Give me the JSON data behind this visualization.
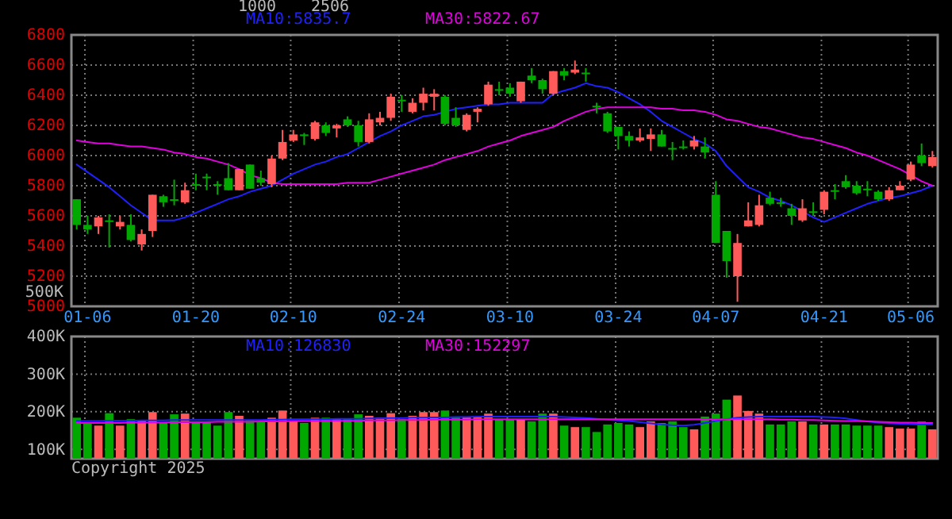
{
  "chart_data": [
    {
      "type": "candlestick",
      "categories": [
        null,
        "01-06",
        null,
        null,
        null,
        null,
        null,
        null,
        null,
        null,
        null,
        "01-20",
        null,
        null,
        null,
        null,
        null,
        null,
        null,
        null,
        "02-10",
        null,
        null,
        null,
        null,
        null,
        null,
        null,
        null,
        null,
        "02-24",
        null,
        null,
        null,
        null,
        null,
        null,
        null,
        null,
        null,
        "03-10",
        null,
        null,
        null,
        null,
        null,
        null,
        null,
        null,
        null,
        "03-24",
        null,
        null,
        null,
        null,
        null,
        null,
        null,
        null,
        "04-07",
        null,
        null,
        null,
        null,
        null,
        null,
        null,
        null,
        null,
        "04-21",
        null,
        null,
        null,
        null,
        null,
        null,
        null,
        "05-06",
        null,
        null
      ],
      "ohlc": [
        [
          5710,
          5710,
          5510,
          5540
        ],
        [
          5540,
          5600,
          5480,
          5510
        ],
        [
          5530,
          5600,
          5480,
          5590
        ],
        [
          5570,
          5610,
          5390,
          5560
        ],
        [
          5530,
          5600,
          5510,
          5560
        ],
        [
          5540,
          5610,
          5430,
          5440
        ],
        [
          5410,
          5510,
          5370,
          5480
        ],
        [
          5500,
          5740,
          5460,
          5740
        ],
        [
          5730,
          5740,
          5660,
          5690
        ],
        [
          5710,
          5840,
          5670,
          5700
        ],
        [
          5690,
          5820,
          5680,
          5770
        ],
        [
          5810,
          5880,
          5770,
          5800
        ],
        [
          5860,
          5880,
          5770,
          5850
        ],
        [
          5810,
          5830,
          5740,
          5800
        ],
        [
          5850,
          5950,
          5770,
          5770
        ],
        [
          5770,
          5910,
          5770,
          5910
        ],
        [
          5940,
          5940,
          5780,
          5780
        ],
        [
          5850,
          5900,
          5800,
          5820
        ],
        [
          5810,
          6000,
          5790,
          5980
        ],
        [
          5980,
          6170,
          5970,
          6090
        ],
        [
          6100,
          6170,
          6090,
          6140
        ],
        [
          6140,
          6150,
          6070,
          6130
        ],
        [
          6110,
          6230,
          6100,
          6220
        ],
        [
          6200,
          6220,
          6130,
          6150
        ],
        [
          6180,
          6210,
          6120,
          6200
        ],
        [
          6240,
          6260,
          6190,
          6200
        ],
        [
          6200,
          6230,
          6060,
          6090
        ],
        [
          6090,
          6280,
          6080,
          6240
        ],
        [
          6220,
          6290,
          6200,
          6250
        ],
        [
          6250,
          6410,
          6230,
          6390
        ],
        [
          6370,
          6400,
          6290,
          6360
        ],
        [
          6290,
          6380,
          6280,
          6350
        ],
        [
          6350,
          6450,
          6300,
          6410
        ],
        [
          6390,
          6440,
          6300,
          6410
        ],
        [
          6390,
          6400,
          6200,
          6210
        ],
        [
          6250,
          6320,
          6190,
          6200
        ],
        [
          6170,
          6280,
          6160,
          6270
        ],
        [
          6290,
          6320,
          6220,
          6310
        ],
        [
          6340,
          6490,
          6330,
          6470
        ],
        [
          6440,
          6490,
          6400,
          6435
        ],
        [
          6450,
          6480,
          6390,
          6410
        ],
        [
          6360,
          6490,
          6350,
          6490
        ],
        [
          6530,
          6580,
          6480,
          6500
        ],
        [
          6500,
          6510,
          6410,
          6440
        ],
        [
          6410,
          6560,
          6400,
          6560
        ],
        [
          6560,
          6580,
          6500,
          6530
        ],
        [
          6550,
          6630,
          6540,
          6570
        ],
        [
          6550,
          6580,
          6490,
          6540
        ],
        [
          6330,
          6350,
          6280,
          6320
        ],
        [
          6280,
          6290,
          6150,
          6160
        ],
        [
          6190,
          6190,
          6040,
          6130
        ],
        [
          6130,
          6160,
          6060,
          6100
        ],
        [
          6100,
          6180,
          6090,
          6120
        ],
        [
          6110,
          6180,
          6030,
          6140
        ],
        [
          6140,
          6170,
          6060,
          6060
        ],
        [
          6050,
          6090,
          5970,
          6040
        ],
        [
          6060,
          6100,
          6040,
          6050
        ],
        [
          6060,
          6130,
          6040,
          6100
        ],
        [
          6060,
          6120,
          5980,
          6020
        ],
        [
          5740,
          5830,
          5420,
          5420
        ],
        [
          5500,
          5500,
          5190,
          5300
        ],
        [
          5200,
          5480,
          5030,
          5420
        ],
        [
          5530,
          5690,
          5530,
          5570
        ],
        [
          5540,
          5740,
          5530,
          5670
        ],
        [
          5720,
          5760,
          5670,
          5680
        ],
        [
          5690,
          5720,
          5660,
          5680
        ],
        [
          5650,
          5680,
          5540,
          5600
        ],
        [
          5570,
          5710,
          5560,
          5650
        ],
        [
          5630,
          5690,
          5600,
          5625
        ],
        [
          5640,
          5770,
          5610,
          5760
        ],
        [
          5770,
          5810,
          5710,
          5760
        ],
        [
          5830,
          5870,
          5780,
          5790
        ],
        [
          5800,
          5830,
          5740,
          5750
        ],
        [
          5780,
          5830,
          5730,
          5770
        ],
        [
          5760,
          5770,
          5700,
          5710
        ],
        [
          5710,
          5790,
          5700,
          5770
        ],
        [
          5770,
          5830,
          5770,
          5800
        ],
        [
          5840,
          5960,
          5830,
          5940
        ],
        [
          6000,
          6080,
          5930,
          5950
        ],
        [
          5930,
          6030,
          5920,
          5990
        ]
      ],
      "colors": [
        "#00a800",
        "#00a800",
        "#ff5a5a",
        "#00a800",
        "#ff5a5a",
        "#00a800",
        "#ff5a5a",
        "#ff5a5a",
        "#00a800",
        "#00a800",
        "#ff5a5a",
        "#00a800",
        "#00a800",
        "#00a800",
        "#00a800",
        "#ff5a5a",
        "#00a800",
        "#00a800",
        "#ff5a5a",
        "#ff5a5a",
        "#ff5a5a",
        "#00a800",
        "#ff5a5a",
        "#00a800",
        "#ff5a5a",
        "#00a800",
        "#00a800",
        "#ff5a5a",
        "#ff5a5a",
        "#ff5a5a",
        "#00a800",
        "#ff5a5a",
        "#ff5a5a",
        "#ff5a5a",
        "#00a800",
        "#00a800",
        "#ff5a5a",
        "#ff5a5a",
        "#ff5a5a",
        "#00a800",
        "#00a800",
        "#ff5a5a",
        "#00a800",
        "#00a800",
        "#ff5a5a",
        "#00a800",
        "#ff5a5a",
        "#00a800",
        "#00a800",
        "#00a800",
        "#00a800",
        "#00a800",
        "#ff5a5a",
        "#ff5a5a",
        "#00a800",
        "#00a800",
        "#00a800",
        "#ff5a5a",
        "#00a800",
        "#00a800",
        "#00a800",
        "#ff5a5a",
        "#ff5a5a",
        "#ff5a5a",
        "#00a800",
        "#00a800",
        "#00a800",
        "#ff5a5a",
        "#00a800",
        "#ff5a5a",
        "#00a800",
        "#00a800",
        "#00a800",
        "#00a800",
        "#00a800",
        "#ff5a5a",
        "#ff5a5a",
        "#ff5a5a",
        "#00a800",
        "#ff5a5a"
      ],
      "series": [
        {
          "name": "MA10:5835.7",
          "type": "line",
          "color": "#2020ff",
          "values": [
            5940,
            5890,
            5840,
            5790,
            5730,
            5670,
            5620,
            5570,
            5570,
            5570,
            5590,
            5620,
            5650,
            5680,
            5710,
            5730,
            5760,
            5780,
            5800,
            5840,
            5880,
            5910,
            5940,
            5960,
            5990,
            6010,
            6050,
            6090,
            6130,
            6160,
            6200,
            6230,
            6260,
            6270,
            6290,
            6310,
            6320,
            6330,
            6340,
            6340,
            6350,
            6350,
            6350,
            6350,
            6410,
            6430,
            6450,
            6480,
            6460,
            6450,
            6420,
            6380,
            6340,
            6290,
            6230,
            6190,
            6150,
            6110,
            6080,
            6030,
            5930,
            5860,
            5790,
            5760,
            5720,
            5700,
            5670,
            5630,
            5590,
            5560,
            5590,
            5620,
            5650,
            5680,
            5700,
            5720,
            5730,
            5750,
            5770,
            5800
          ]
        },
        {
          "name": "MA30:5822.67",
          "type": "line",
          "color": "#e000e0",
          "values": [
            6100,
            6090,
            6080,
            6080,
            6070,
            6060,
            6060,
            6050,
            6040,
            6020,
            6010,
            5990,
            5980,
            5960,
            5940,
            5910,
            5870,
            5850,
            5820,
            5810,
            5810,
            5810,
            5810,
            5810,
            5810,
            5820,
            5820,
            5820,
            5840,
            5860,
            5880,
            5900,
            5920,
            5940,
            5970,
            5990,
            6010,
            6030,
            6060,
            6080,
            6100,
            6130,
            6150,
            6170,
            6190,
            6230,
            6260,
            6290,
            6310,
            6320,
            6320,
            6320,
            6320,
            6320,
            6310,
            6310,
            6300,
            6300,
            6290,
            6270,
            6240,
            6230,
            6210,
            6190,
            6180,
            6160,
            6140,
            6120,
            6110,
            6090,
            6070,
            6050,
            6020,
            6000,
            5970,
            5940,
            5910,
            5870,
            5830,
            5800
          ]
        }
      ],
      "ylim": [
        5000,
        6800
      ],
      "yticks": [
        5000,
        5200,
        5400,
        5600,
        5800,
        6000,
        6200,
        6400,
        6600,
        6800
      ],
      "grid": true,
      "legend": "top",
      "annotations": [
        "1000",
        "2506"
      ]
    },
    {
      "type": "bar",
      "categories": [
        null,
        null,
        null,
        null,
        null,
        null,
        null,
        null,
        null,
        null,
        null,
        null,
        null,
        null,
        null,
        null,
        null,
        null,
        null,
        null,
        null,
        null,
        null,
        null,
        null,
        null,
        null,
        null,
        null,
        null,
        null,
        null,
        null,
        null,
        null,
        null,
        null,
        null,
        null,
        null,
        null,
        null,
        null,
        null,
        null,
        null,
        null,
        null,
        null,
        null,
        null,
        null,
        null,
        null,
        null,
        null,
        null,
        null,
        null,
        null,
        null,
        null,
        null,
        null,
        null,
        null,
        null,
        null,
        null,
        null,
        null,
        null,
        null,
        null,
        null,
        null,
        null,
        null,
        null,
        null
      ],
      "series": [
        {
          "type": "bar",
          "colors": [
            "#00a800",
            "#00a800",
            "#ff5a5a",
            "#00a800",
            "#ff5a5a",
            "#00a800",
            "#ff5a5a",
            "#ff5a5a",
            "#00a800",
            "#00a800",
            "#ff5a5a",
            "#00a800",
            "#00a800",
            "#00a800",
            "#00a800",
            "#ff5a5a",
            "#00a800",
            "#00a800",
            "#ff5a5a",
            "#ff5a5a",
            "#ff5a5a",
            "#00a800",
            "#ff5a5a",
            "#00a800",
            "#ff5a5a",
            "#00a800",
            "#00a800",
            "#ff5a5a",
            "#ff5a5a",
            "#ff5a5a",
            "#00a800",
            "#ff5a5a",
            "#ff5a5a",
            "#ff5a5a",
            "#00a800",
            "#00a800",
            "#ff5a5a",
            "#ff5a5a",
            "#ff5a5a",
            "#00a800",
            "#00a800",
            "#ff5a5a",
            "#00a800",
            "#00a800",
            "#ff5a5a",
            "#00a800",
            "#ff5a5a",
            "#00a800",
            "#00a800",
            "#00a800",
            "#00a800",
            "#00a800",
            "#ff5a5a",
            "#ff5a5a",
            "#00a800",
            "#00a800",
            "#00a800",
            "#ff5a5a",
            "#00a800",
            "#00a800",
            "#00a800",
            "#ff5a5a",
            "#ff5a5a",
            "#ff5a5a",
            "#00a800",
            "#00a800",
            "#00a800",
            "#ff5a5a",
            "#00a800",
            "#ff5a5a",
            "#00a800",
            "#00a800",
            "#00a800",
            "#00a800",
            "#00a800",
            "#ff5a5a",
            "#ff5a5a",
            "#ff5a5a",
            "#00a800",
            "#ff5a5a"
          ],
          "values": [
            184000,
            170000,
            163000,
            196000,
            163000,
            180000,
            176000,
            199000,
            170000,
            193000,
            195000,
            174000,
            174000,
            163000,
            199000,
            189000,
            176000,
            172000,
            184000,
            203000,
            174000,
            170000,
            184000,
            184000,
            180000,
            180000,
            193000,
            189000,
            184000,
            196000,
            180000,
            189000,
            199000,
            199000,
            203000,
            187000,
            187000,
            187000,
            195000,
            180000,
            180000,
            180000,
            174000,
            195000,
            195000,
            163000,
            159000,
            159000,
            146000,
            166000,
            170000,
            166000,
            159000,
            174000,
            170000,
            174000,
            159000,
            153000,
            187000,
            195000,
            232000,
            243000,
            202000,
            195000,
            166000,
            166000,
            174000,
            174000,
            166000,
            166000,
            166000,
            166000,
            163000,
            163000,
            163000,
            159000,
            155000,
            155000,
            174000,
            153000
          ]
        },
        {
          "name": "MA10:126830",
          "type": "line",
          "color": "#2020ff",
          "values": [
            175000,
            175000,
            175000,
            176000,
            176000,
            176000,
            177000,
            177000,
            177000,
            178000,
            178000,
            178000,
            178000,
            178000,
            178000,
            178000,
            178000,
            178000,
            179000,
            179000,
            180000,
            180000,
            180000,
            180000,
            181000,
            181000,
            181000,
            182000,
            182000,
            183000,
            183000,
            184000,
            184000,
            185000,
            185000,
            186000,
            186000,
            187000,
            187000,
            187000,
            187000,
            187000,
            187000,
            187000,
            187000,
            186000,
            185000,
            183000,
            181000,
            179000,
            177000,
            175000,
            172000,
            169000,
            166000,
            164000,
            163000,
            165000,
            170000,
            175000,
            180000,
            184000,
            186000,
            187000,
            187000,
            187000,
            187000,
            187000,
            187000,
            186000,
            185000,
            182000,
            178000,
            174000,
            171000,
            169000,
            168000,
            167000,
            166000,
            166000
          ]
        },
        {
          "name": "MA30:152297",
          "type": "line",
          "color": "#e000e0",
          "values": [
            170000,
            170000,
            170000,
            170000,
            170000,
            171000,
            171000,
            171000,
            171000,
            172000,
            172000,
            172000,
            172000,
            173000,
            173000,
            173000,
            173000,
            174000,
            174000,
            174000,
            175000,
            175000,
            175000,
            175000,
            176000,
            176000,
            176000,
            177000,
            177000,
            177000,
            178000,
            178000,
            178000,
            179000,
            179000,
            179000,
            179000,
            180000,
            180000,
            180000,
            180000,
            180000,
            180000,
            180000,
            180000,
            180000,
            180000,
            180000,
            180000,
            180000,
            180000,
            180000,
            180000,
            180000,
            180000,
            180000,
            180000,
            180000,
            180000,
            180000,
            180000,
            180000,
            180000,
            180000,
            180000,
            179000,
            179000,
            178000,
            178000,
            177000,
            176000,
            175000,
            175000,
            174000,
            173000,
            172000,
            171000,
            171000,
            170000,
            170000
          ]
        }
      ],
      "ylim": [
        75000,
        400000
      ],
      "yticks": [
        {
          "value": 100000,
          "label": "100K"
        },
        {
          "value": 200000,
          "label": "200K"
        },
        {
          "value": 300000,
          "label": "300K"
        },
        {
          "value": 400000,
          "label": "400K"
        }
      ],
      "grid": true,
      "legend": "top",
      "tick_labels": "y",
      "annotations": [
        "500K",
        "Copyright 2025"
      ]
    }
  ]
}
